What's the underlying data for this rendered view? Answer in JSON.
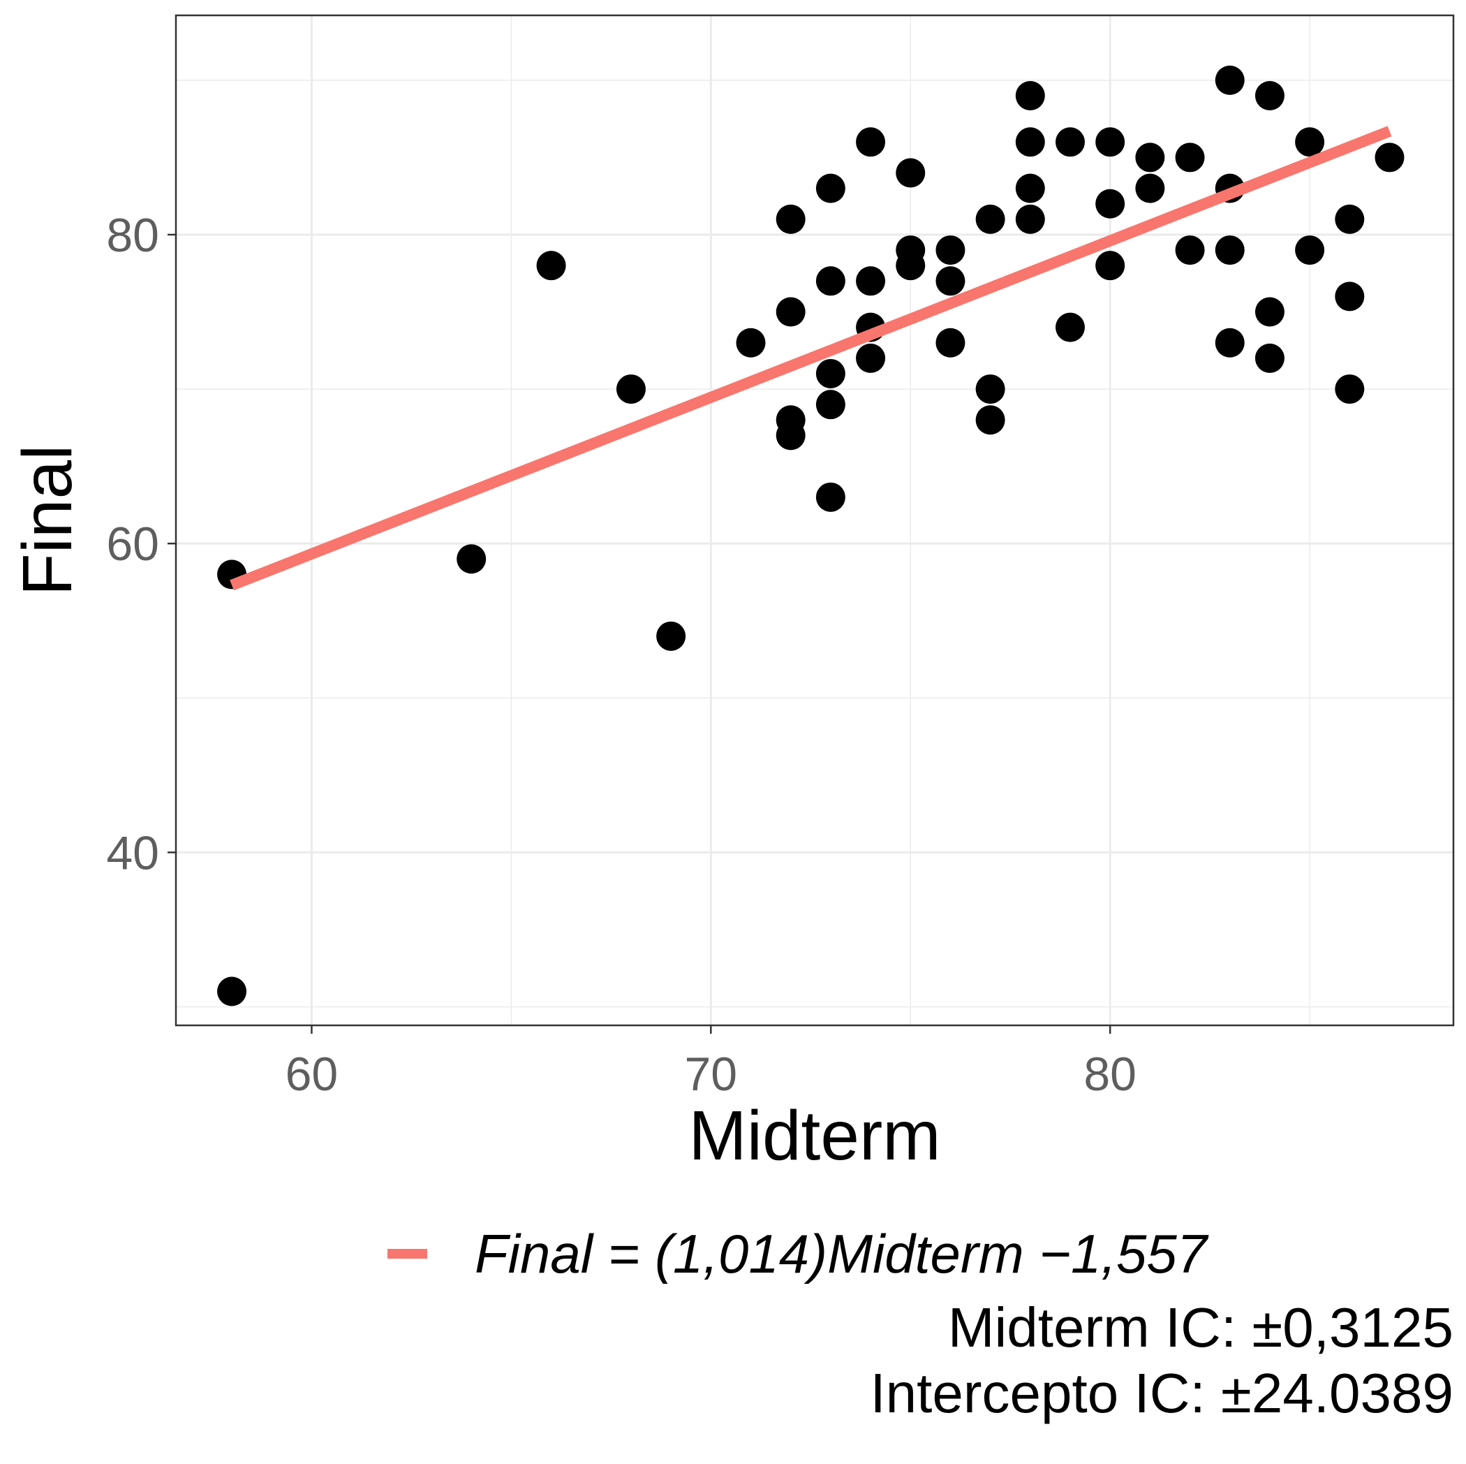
{
  "chart_data": {
    "type": "scatter",
    "xlabel": "Midterm",
    "ylabel": "Final",
    "xlim": [
      56.6,
      88.6
    ],
    "ylim": [
      28.8,
      94.2
    ],
    "xticks": [
      60,
      70,
      80
    ],
    "yticks": [
      40,
      60,
      80
    ],
    "x_minor_gridlines": [
      65,
      75,
      85
    ],
    "y_minor_gridlines": [
      30,
      50,
      70,
      90
    ],
    "grid": true,
    "point_color": "#000000",
    "points": [
      {
        "x": 58,
        "y": 58
      },
      {
        "x": 58,
        "y": 31
      },
      {
        "x": 64,
        "y": 59
      },
      {
        "x": 66,
        "y": 78
      },
      {
        "x": 68,
        "y": 70
      },
      {
        "x": 69,
        "y": 54
      },
      {
        "x": 71,
        "y": 73
      },
      {
        "x": 72,
        "y": 81
      },
      {
        "x": 72,
        "y": 75
      },
      {
        "x": 72,
        "y": 68
      },
      {
        "x": 72,
        "y": 67
      },
      {
        "x": 73,
        "y": 83
      },
      {
        "x": 73,
        "y": 77
      },
      {
        "x": 73,
        "y": 71
      },
      {
        "x": 73,
        "y": 69
      },
      {
        "x": 73,
        "y": 63
      },
      {
        "x": 74,
        "y": 86
      },
      {
        "x": 74,
        "y": 77
      },
      {
        "x": 74,
        "y": 74
      },
      {
        "x": 74,
        "y": 72
      },
      {
        "x": 75,
        "y": 84
      },
      {
        "x": 75,
        "y": 79
      },
      {
        "x": 75,
        "y": 78
      },
      {
        "x": 76,
        "y": 79
      },
      {
        "x": 76,
        "y": 77
      },
      {
        "x": 76,
        "y": 73
      },
      {
        "x": 77,
        "y": 81
      },
      {
        "x": 77,
        "y": 70
      },
      {
        "x": 77,
        "y": 68
      },
      {
        "x": 78,
        "y": 89
      },
      {
        "x": 78,
        "y": 86
      },
      {
        "x": 78,
        "y": 83
      },
      {
        "x": 78,
        "y": 81
      },
      {
        "x": 79,
        "y": 86
      },
      {
        "x": 79,
        "y": 74
      },
      {
        "x": 80,
        "y": 86
      },
      {
        "x": 80,
        "y": 82
      },
      {
        "x": 80,
        "y": 78
      },
      {
        "x": 81,
        "y": 85
      },
      {
        "x": 81,
        "y": 83
      },
      {
        "x": 82,
        "y": 85
      },
      {
        "x": 82,
        "y": 79
      },
      {
        "x": 83,
        "y": 90
      },
      {
        "x": 83,
        "y": 83
      },
      {
        "x": 83,
        "y": 79
      },
      {
        "x": 83,
        "y": 73
      },
      {
        "x": 84,
        "y": 89
      },
      {
        "x": 84,
        "y": 75
      },
      {
        "x": 84,
        "y": 72
      },
      {
        "x": 85,
        "y": 86
      },
      {
        "x": 85,
        "y": 79
      },
      {
        "x": 86,
        "y": 81
      },
      {
        "x": 86,
        "y": 76
      },
      {
        "x": 86,
        "y": 70
      },
      {
        "x": 87,
        "y": 85
      }
    ],
    "fit_line": {
      "name": "Final = (1,014)Midterm −1,557",
      "color": "#f8766d",
      "x": [
        58,
        87
      ],
      "y": [
        57.3,
        86.7
      ]
    },
    "legend_position": "bottom"
  },
  "annotations": {
    "midterm_ci": "Midterm IC: ±0,3125",
    "intercept_ci": "Intercepto IC: ±24.0389"
  }
}
